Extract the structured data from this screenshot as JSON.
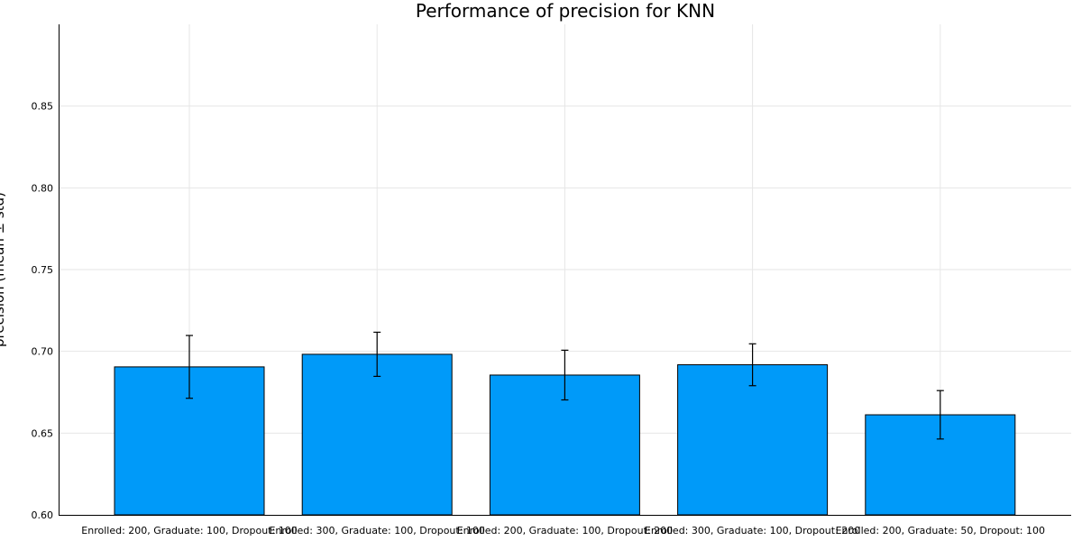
{
  "chart_data": {
    "type": "bar",
    "title": "Performance of precision for KNN",
    "xlabel": "",
    "ylabel": "precision (mean ± std)",
    "categories": [
      "Enrolled: 200, Graduate: 100, Dropout: 100",
      "Enrolled: 300, Graduate: 100, Dropout: 100",
      "Enrolled: 200, Graduate: 100, Dropout: 200",
      "Enrolled: 300, Graduate: 100, Dropout: 200",
      "Enrolled: 200, Graduate: 50, Dropout: 100"
    ],
    "values": [
      0.6905,
      0.6982,
      0.6855,
      0.6918,
      0.6612
    ],
    "error": [
      0.0192,
      0.0135,
      0.0152,
      0.0128,
      0.0148
    ],
    "ylim": [
      0.6,
      0.9
    ],
    "yticks": [
      "0.60",
      "0.65",
      "0.70",
      "0.75",
      "0.80",
      "0.85"
    ],
    "grid": true,
    "legend": "none",
    "bar_color": "#009af9"
  }
}
